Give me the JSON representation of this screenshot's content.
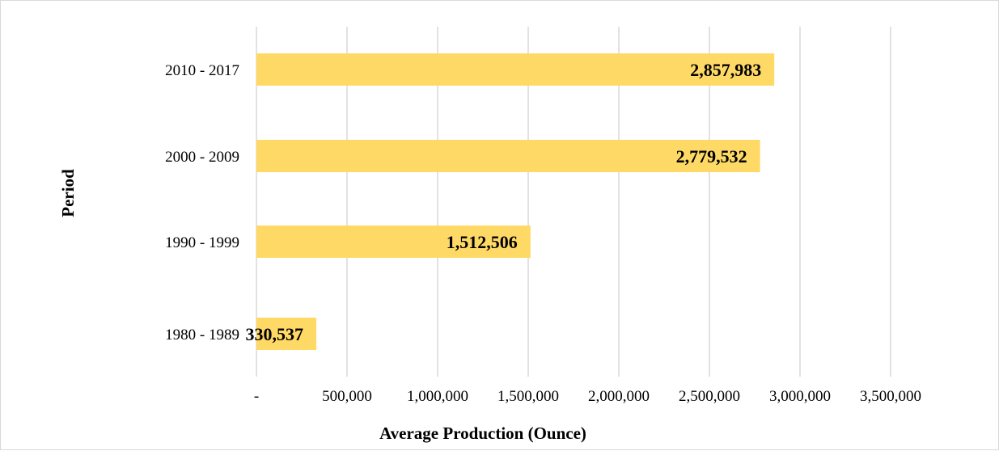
{
  "chart_data": {
    "type": "bar",
    "orientation": "horizontal",
    "categories": [
      "1980 - 1989",
      "1990 - 1999",
      "2000 - 2009",
      "2010 - 2017"
    ],
    "values": [
      330537,
      1512506,
      2779532,
      2857983
    ],
    "data_labels": [
      "330,537",
      "1,512,506",
      "2,779,532",
      "2,857,983"
    ],
    "xlabel": "Average Production (Ounce)",
    "ylabel": "Period",
    "xlim": [
      0,
      3500000
    ],
    "x_ticks": [
      0,
      500000,
      1000000,
      1500000,
      2000000,
      2500000,
      3000000,
      3500000
    ],
    "x_tick_labels": [
      "-",
      "500,000",
      "1,000,000",
      "1,500,000",
      "2,000,000",
      "2,500,000",
      "3,000,000",
      "3,500,000"
    ],
    "grid": "vertical",
    "legend": "none",
    "bar_color": "#FFD966",
    "grid_color": "#D9D9D9"
  }
}
